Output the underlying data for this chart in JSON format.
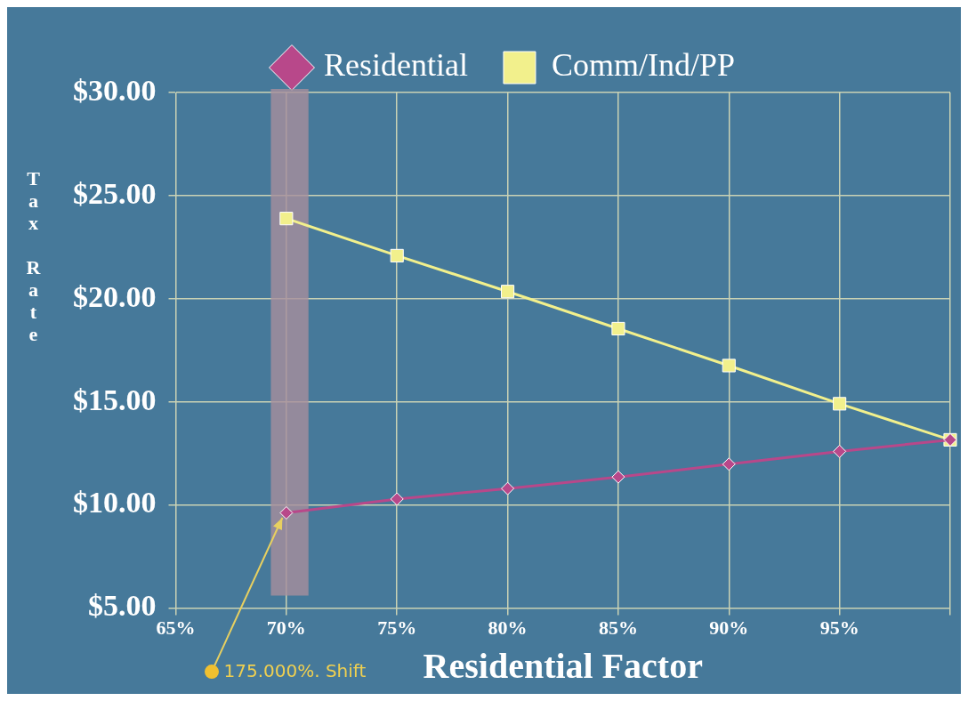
{
  "chart_data": {
    "type": "line",
    "xlabel": "Residential Factor",
    "ylabel": "Tax Rate",
    "x": [
      70,
      75,
      80,
      85,
      90,
      95,
      100
    ],
    "series": [
      {
        "name": "Residential",
        "color": "#b8488a",
        "values": [
          9.62,
          10.29,
          10.8,
          11.36,
          11.98,
          12.6,
          13.16
        ],
        "marker": "diamond"
      },
      {
        "name": "Comm/Ind/PP",
        "color": "#f2f08c",
        "values": [
          23.89,
          22.09,
          20.35,
          18.55,
          16.76,
          14.91,
          13.16
        ],
        "marker": "square"
      }
    ],
    "xlim": [
      65,
      100
    ],
    "xticks": [
      {
        "value": 65,
        "label": "65%"
      },
      {
        "value": 70,
        "label": "70%"
      },
      {
        "value": 75,
        "label": "75%"
      },
      {
        "value": 80,
        "label": "80%"
      },
      {
        "value": 85,
        "label": "85%"
      },
      {
        "value": 90,
        "label": "90%"
      },
      {
        "value": 95,
        "label": "95%"
      },
      {
        "value": 100,
        "label": null
      }
    ],
    "ylim": [
      5,
      30
    ],
    "yticks": [
      {
        "value": 5,
        "label": "$5.00"
      },
      {
        "value": 10,
        "label": "$10.00"
      },
      {
        "value": 15,
        "label": "$15.00"
      },
      {
        "value": 20,
        "label": "$20.00"
      },
      {
        "value": 25,
        "label": "$25.00"
      },
      {
        "value": 30,
        "label": "$30.00"
      }
    ],
    "bands": [
      {
        "axis": "x",
        "from": 69.3,
        "to": 71,
        "color": "#a88e9c"
      }
    ],
    "annotations": [
      {
        "text": "175.000%. Shift",
        "x": 70,
        "y": 9.62
      }
    ],
    "grid": true,
    "legend": "top",
    "line_style": "solid"
  }
}
